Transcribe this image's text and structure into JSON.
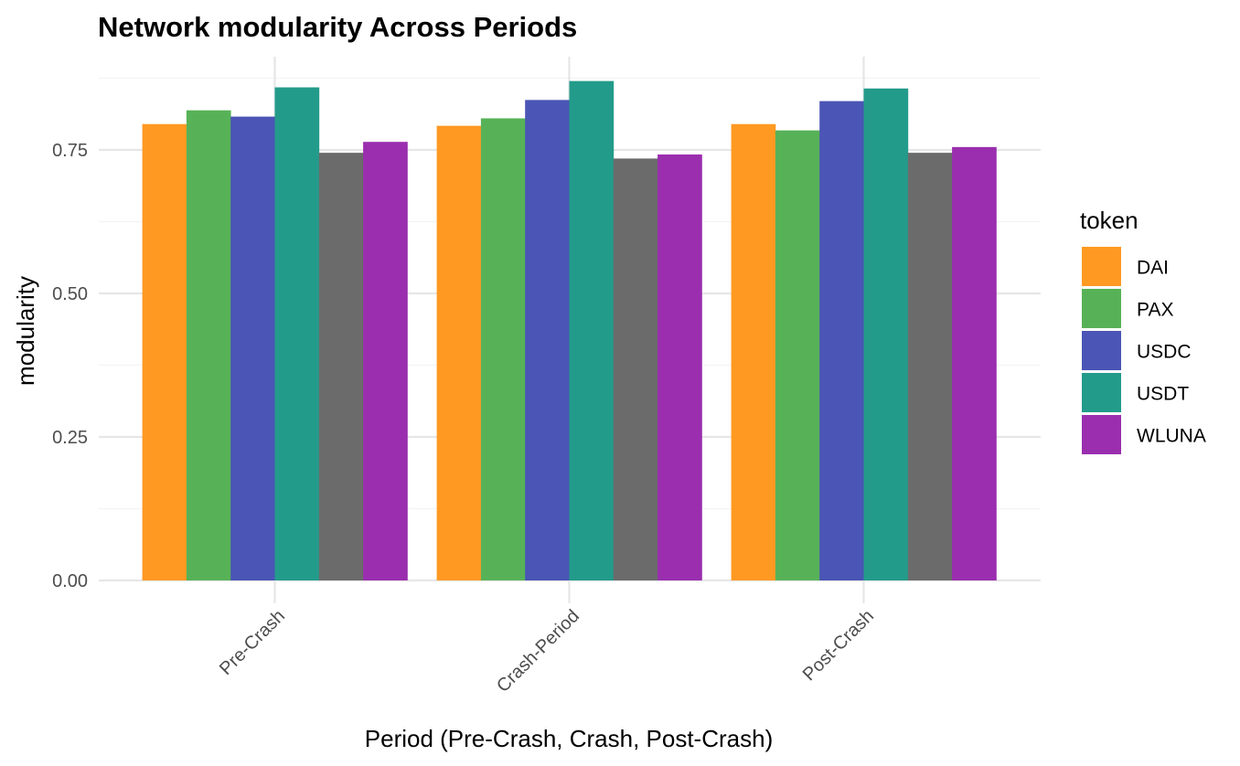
{
  "chart_data": {
    "type": "bar",
    "title": "Network modularity Across Periods",
    "xlabel": "Period (Pre-Crash, Crash, Post-Crash)",
    "ylabel": "modularity",
    "categories": [
      "Pre-Crash",
      "Crash-Period",
      "Post-Crash"
    ],
    "series": [
      {
        "name": "DAI",
        "color": "#ff9922",
        "values": [
          0.795,
          0.792,
          0.795
        ]
      },
      {
        "name": "PAX",
        "color": "#57b257",
        "values": [
          0.819,
          0.805,
          0.784
        ]
      },
      {
        "name": "USDC",
        "color": "#4a55b5",
        "values": [
          0.808,
          0.837,
          0.835
        ]
      },
      {
        "name": "USDT",
        "color": "#239b8a",
        "values": [
          0.859,
          0.87,
          0.857
        ]
      },
      {
        "name": "",
        "color": "#6b6b6b",
        "values": [
          0.745,
          0.735,
          0.745
        ]
      },
      {
        "name": "WLUNA",
        "color": "#9a2eae",
        "values": [
          0.764,
          0.742,
          0.755
        ]
      }
    ],
    "yticks": [
      "0.00",
      "0.25",
      "0.50",
      "0.75"
    ],
    "ytick_values": [
      0,
      0.25,
      0.5,
      0.75
    ],
    "ylim": [
      0,
      0.9
    ],
    "grid": true,
    "legend": {
      "title": "token",
      "placement": "right",
      "entries": [
        "DAI",
        "PAX",
        "USDC",
        "USDT",
        "WLUNA"
      ]
    },
    "xtick_rotation": 45
  }
}
